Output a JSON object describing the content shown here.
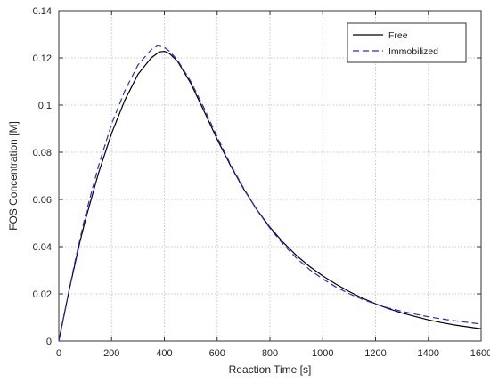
{
  "chart_data": {
    "type": "line",
    "title": "",
    "xlabel": "Reaction Time [s]",
    "ylabel": "FOS Concentration [M]",
    "xlim": [
      0,
      1600
    ],
    "ylim": [
      0,
      0.14
    ],
    "xticks": [
      0,
      200,
      400,
      600,
      800,
      1000,
      1200,
      1400,
      1600
    ],
    "yticks": [
      0,
      0.02,
      0.04,
      0.06,
      0.08,
      0.1,
      0.12,
      0.14
    ],
    "xtick_labels": [
      "0",
      "200",
      "400",
      "600",
      "800",
      "1000",
      "1200",
      "1400",
      "1600"
    ],
    "ytick_labels": [
      "0",
      "0.02",
      "0.04",
      "0.06",
      "0.08",
      "0.1",
      "0.12",
      "0.14"
    ],
    "grid": true,
    "legend_position": "top-right",
    "series": [
      {
        "name": "Free",
        "color": "#000000",
        "line_style": "solid",
        "x": [
          0,
          20,
          40,
          60,
          80,
          100,
          150,
          200,
          250,
          300,
          350,
          380,
          400,
          420,
          450,
          500,
          550,
          600,
          650,
          700,
          750,
          800,
          850,
          900,
          950,
          1000,
          1050,
          1100,
          1150,
          1200,
          1250,
          1300,
          1350,
          1400,
          1450,
          1500,
          1550,
          1600
        ],
        "y": [
          0,
          0.011,
          0.022,
          0.032,
          0.042,
          0.051,
          0.071,
          0.088,
          0.102,
          0.113,
          0.12,
          0.1225,
          0.1228,
          0.1218,
          0.1185,
          0.1092,
          0.0975,
          0.0855,
          0.0745,
          0.0645,
          0.0557,
          0.0482,
          0.0418,
          0.0363,
          0.0316,
          0.0276,
          0.0241,
          0.021,
          0.0182,
          0.0158,
          0.0137,
          0.0119,
          0.0104,
          0.009,
          0.0078,
          0.0068,
          0.006,
          0.0052
        ]
      },
      {
        "name": "Immobilized",
        "color": "#2a2ad8",
        "line_style": "dashed",
        "x": [
          0,
          20,
          40,
          60,
          80,
          100,
          150,
          200,
          250,
          300,
          350,
          375,
          400,
          420,
          450,
          500,
          550,
          600,
          650,
          700,
          750,
          800,
          850,
          900,
          950,
          1000,
          1050,
          1100,
          1150,
          1200,
          1250,
          1300,
          1350,
          1400,
          1450,
          1500,
          1550,
          1600
        ],
        "y": [
          0,
          0.011,
          0.022,
          0.033,
          0.043,
          0.053,
          0.074,
          0.092,
          0.106,
          0.117,
          0.1235,
          0.1252,
          0.1245,
          0.1228,
          0.119,
          0.11,
          0.0988,
          0.0865,
          0.075,
          0.0648,
          0.0557,
          0.0478,
          0.041,
          0.0352,
          0.0303,
          0.0263,
          0.0229,
          0.0201,
          0.0177,
          0.0157,
          0.014,
          0.0126,
          0.0114,
          0.0103,
          0.0094,
          0.0086,
          0.0079,
          0.0072
        ]
      }
    ]
  },
  "colors": {
    "axis": "#333333",
    "grid": "#c8c8c8",
    "background": "#ffffff"
  }
}
